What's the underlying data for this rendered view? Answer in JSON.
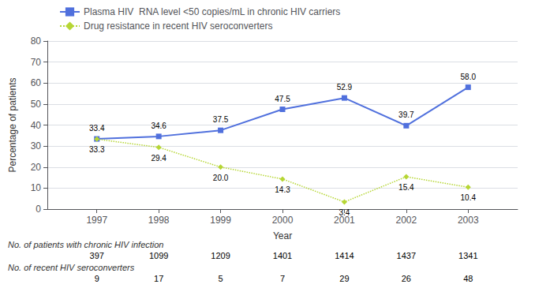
{
  "chart_data": {
    "type": "line",
    "x": [
      1997,
      1998,
      1999,
      2000,
      2001,
      2002,
      2003
    ],
    "xlabel": "Year",
    "ylabel": "Percentage of patients",
    "xlim": [
      1996.2,
      2003.8
    ],
    "xticks": [
      1997,
      1998,
      1999,
      2000,
      2001,
      2002,
      2003
    ],
    "ylim": [
      0,
      80
    ],
    "yticks": [
      0,
      10,
      20,
      30,
      40,
      50,
      60,
      70,
      80
    ],
    "grid": "y",
    "legend": "upper left",
    "data_labels": true,
    "series": [
      {
        "name": "Plasma HIV  RNA level <50 copies/mL in chronic HIV carriers",
        "values": [
          33.4,
          34.6,
          37.5,
          47.5,
          52.9,
          39.7,
          58.0
        ],
        "value_labels": [
          "33.4",
          "34.6",
          "37.5",
          "47.5",
          "52.9",
          "39.7",
          "58.0"
        ],
        "marker": "square",
        "line_style": "solid"
      },
      {
        "name": "Drug resistance in recent HIV seroconverters",
        "values": [
          33.3,
          29.4,
          20.0,
          14.3,
          3.4,
          15.4,
          10.4
        ],
        "value_labels": [
          "33.3",
          "29.4",
          "20.0",
          "14.3",
          "3.4",
          "15.4",
          "10.4"
        ],
        "marker": "diamond",
        "line_style": "dotted"
      }
    ],
    "table": [
      {
        "label": "No. of patients with chronic HIV infection",
        "values": [
          397,
          1099,
          1209,
          1401,
          1414,
          1437,
          1341
        ]
      },
      {
        "label": "No. of recent HIV seroconverters",
        "values": [
          9,
          17,
          5,
          7,
          29,
          26,
          48
        ]
      }
    ]
  }
}
